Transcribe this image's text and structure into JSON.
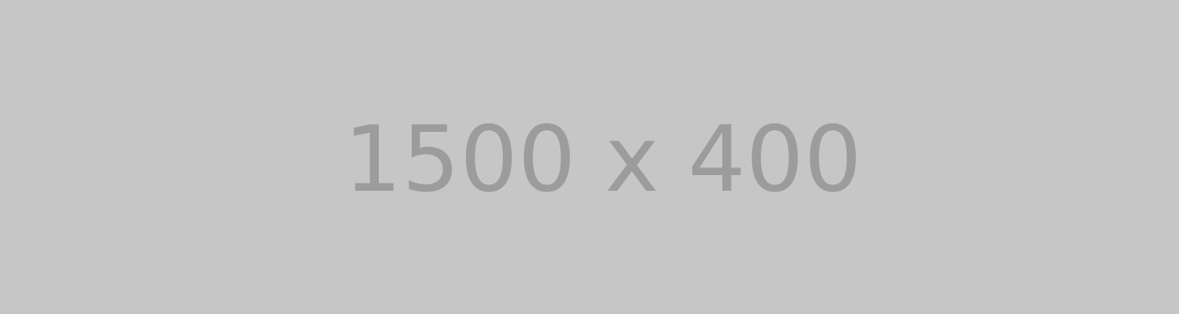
{
  "placeholder": {
    "text": "1500 x 400",
    "background_color": "#c6c6c6",
    "text_color": "#9c9c9c"
  }
}
